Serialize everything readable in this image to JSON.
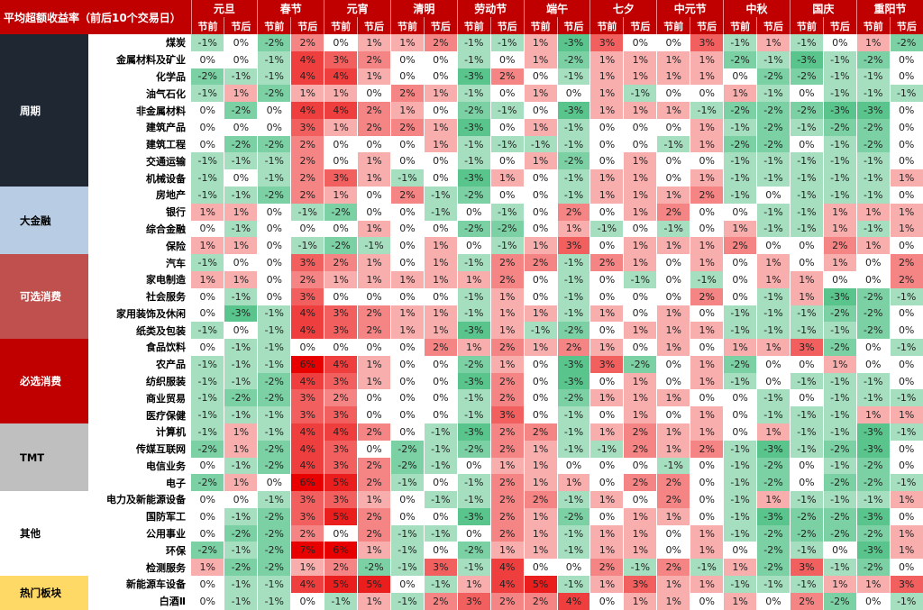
{
  "title": "平均超额收益率（前后10个交易日）",
  "holidays": [
    "元旦",
    "春节",
    "元宵",
    "清明",
    "劳动节",
    "端午",
    "七夕",
    "中元节",
    "中秋",
    "国庆",
    "重阳节"
  ],
  "sub_labels": [
    "节前",
    "节后"
  ],
  "groups": [
    {
      "name": "周期",
      "color": "#1f2733",
      "text_color": "#ffffff",
      "rows": 9
    },
    {
      "name": "大金融",
      "color": "#b8cce4",
      "text_color": "#000000",
      "rows": 4
    },
    {
      "name": "可选消费",
      "color": "#c0504d",
      "text_color": "#ffffff",
      "rows": 5
    },
    {
      "name": "必选消费",
      "color": "#c00000",
      "text_color": "#ffffff",
      "rows": 5
    },
    {
      "name": "TMT",
      "color": "#bfbfbf",
      "text_color": "#000000",
      "rows": 4
    },
    {
      "name": "其他",
      "color": "#ffffff",
      "text_color": "#000000",
      "rows": 5
    },
    {
      "name": "热门板块",
      "color": "#ffd966",
      "text_color": "#000000",
      "rows": 2
    }
  ],
  "chart_data": {
    "type": "heatmap",
    "title": "平均超额收益率（前后10个交易日）",
    "columns": [
      "元旦-节前",
      "元旦-节后",
      "春节-节前",
      "春节-节后",
      "元宵-节前",
      "元宵-节后",
      "清明-节前",
      "清明-节后",
      "劳动节-节前",
      "劳动节-节后",
      "端午-节前",
      "端午-节后",
      "七夕-节前",
      "七夕-节后",
      "中元节-节前",
      "中元节-节后",
      "中秋-节前",
      "中秋-节后",
      "国庆-节前",
      "国庆-节后",
      "重阳节-节前",
      "重阳节-节后"
    ],
    "unit": "%",
    "rows": [
      {
        "name": "煤炭",
        "values": [
          -1,
          0,
          -2,
          2,
          0,
          1,
          1,
          2,
          -1,
          -1,
          1,
          -3,
          3,
          0,
          0,
          3,
          -1,
          1,
          -1,
          0,
          1,
          -2
        ]
      },
      {
        "name": "金属材料及矿业",
        "values": [
          0,
          0,
          -1,
          4,
          3,
          2,
          0,
          0,
          -1,
          0,
          1,
          -2,
          1,
          1,
          1,
          1,
          -2,
          -1,
          -3,
          -1,
          -2,
          0
        ]
      },
      {
        "name": "化学品",
        "values": [
          -2,
          -1,
          -1,
          4,
          4,
          1,
          0,
          0,
          -3,
          2,
          0,
          -1,
          1,
          1,
          1,
          1,
          0,
          -2,
          -2,
          -1,
          -1,
          0
        ]
      },
      {
        "name": "油气石化",
        "values": [
          -1,
          1,
          -2,
          1,
          1,
          0,
          2,
          1,
          -1,
          0,
          1,
          0,
          1,
          -1,
          0,
          0,
          1,
          -1,
          0,
          -1,
          -1,
          -1
        ]
      },
      {
        "name": "非金属材料",
        "values": [
          0,
          -2,
          0,
          4,
          4,
          2,
          1,
          0,
          -2,
          -1,
          0,
          -3,
          1,
          1,
          1,
          -1,
          -2,
          -2,
          -2,
          -3,
          -3,
          0
        ]
      },
      {
        "name": "建筑产品",
        "values": [
          0,
          0,
          0,
          3,
          1,
          2,
          2,
          1,
          -3,
          0,
          1,
          -1,
          0,
          0,
          0,
          1,
          -1,
          -2,
          -1,
          -2,
          -2,
          0
        ]
      },
      {
        "name": "建筑工程",
        "values": [
          0,
          -2,
          -2,
          2,
          0,
          0,
          0,
          1,
          -1,
          -1,
          -1,
          -1,
          0,
          0,
          -1,
          1,
          -2,
          -2,
          0,
          -1,
          -2,
          0
        ]
      },
      {
        "name": "交通运输",
        "values": [
          -1,
          -1,
          -1,
          2,
          0,
          1,
          0,
          0,
          -1,
          0,
          1,
          -2,
          0,
          1,
          0,
          0,
          -1,
          -1,
          -1,
          -1,
          -1,
          0
        ]
      },
      {
        "name": "机械设备",
        "values": [
          -1,
          0,
          -1,
          2,
          3,
          1,
          -1,
          0,
          -3,
          1,
          0,
          -1,
          1,
          1,
          0,
          1,
          -1,
          -1,
          -1,
          -1,
          -1,
          1
        ]
      },
      {
        "name": "房地产",
        "values": [
          -1,
          -1,
          -2,
          2,
          1,
          0,
          2,
          -1,
          -2,
          0,
          0,
          -1,
          1,
          1,
          1,
          2,
          -1,
          0,
          -1,
          -1,
          -1,
          0
        ]
      },
      {
        "name": "银行",
        "values": [
          1,
          1,
          0,
          -1,
          -2,
          0,
          0,
          -1,
          0,
          -1,
          0,
          2,
          0,
          1,
          2,
          0,
          0,
          -1,
          -1,
          1,
          1,
          1
        ]
      },
      {
        "name": "综合金融",
        "values": [
          0,
          -1,
          0,
          0,
          0,
          1,
          0,
          0,
          -2,
          -2,
          0,
          1,
          -1,
          0,
          -1,
          0,
          1,
          -1,
          -1,
          1,
          -1,
          1
        ]
      },
      {
        "name": "保险",
        "values": [
          1,
          1,
          0,
          -1,
          -2,
          -1,
          0,
          1,
          0,
          -1,
          1,
          3,
          0,
          1,
          1,
          1,
          2,
          0,
          0,
          2,
          1,
          0
        ]
      },
      {
        "name": "汽车",
        "values": [
          -1,
          0,
          0,
          3,
          2,
          1,
          0,
          1,
          -1,
          2,
          2,
          -1,
          2,
          1,
          0,
          1,
          0,
          1,
          0,
          1,
          0,
          2
        ]
      },
      {
        "name": "家电制造",
        "values": [
          1,
          1,
          0,
          2,
          1,
          1,
          1,
          1,
          1,
          2,
          0,
          -1,
          0,
          -1,
          0,
          -1,
          0,
          1,
          1,
          0,
          0,
          2
        ]
      },
      {
        "name": "社会服务",
        "values": [
          0,
          -1,
          0,
          3,
          0,
          0,
          0,
          0,
          -1,
          1,
          0,
          -1,
          0,
          0,
          0,
          2,
          0,
          -1,
          1,
          -3,
          -2,
          -1
        ]
      },
      {
        "name": "家用装饰及休闲",
        "values": [
          0,
          -3,
          -1,
          4,
          3,
          2,
          1,
          1,
          -1,
          1,
          1,
          -1,
          1,
          0,
          1,
          0,
          -1,
          -1,
          -1,
          -2,
          -2,
          0
        ]
      },
      {
        "name": "纸类及包装",
        "values": [
          -1,
          0,
          -1,
          4,
          3,
          2,
          1,
          1,
          -3,
          1,
          -1,
          -2,
          0,
          1,
          1,
          1,
          -1,
          -1,
          -1,
          -1,
          -2,
          0
        ]
      },
      {
        "name": "食品饮料",
        "values": [
          0,
          -1,
          -1,
          0,
          0,
          0,
          0,
          2,
          1,
          2,
          1,
          2,
          1,
          0,
          1,
          0,
          1,
          1,
          3,
          -2,
          0,
          -1
        ]
      },
      {
        "name": "农产品",
        "values": [
          -1,
          -1,
          -1,
          6,
          4,
          1,
          0,
          0,
          -2,
          1,
          0,
          -3,
          3,
          -2,
          0,
          1,
          -2,
          0,
          0,
          1,
          0,
          0
        ]
      },
      {
        "name": "纺织服装",
        "values": [
          -1,
          -1,
          -2,
          4,
          3,
          1,
          0,
          0,
          -3,
          2,
          0,
          -3,
          0,
          1,
          0,
          1,
          -1,
          0,
          -1,
          -1,
          -1,
          0
        ]
      },
      {
        "name": "商业贸易",
        "values": [
          -1,
          -2,
          -2,
          3,
          2,
          0,
          0,
          0,
          -1,
          2,
          0,
          -2,
          1,
          1,
          1,
          0,
          0,
          -1,
          0,
          -1,
          -1,
          -1
        ]
      },
      {
        "name": "医疗保健",
        "values": [
          -1,
          -1,
          -1,
          3,
          3,
          0,
          0,
          0,
          -1,
          3,
          0,
          -1,
          0,
          1,
          0,
          1,
          0,
          -1,
          -1,
          -1,
          1,
          1
        ]
      },
      {
        "name": "计算机",
        "values": [
          -1,
          1,
          -1,
          4,
          4,
          2,
          0,
          -1,
          -3,
          2,
          2,
          -1,
          1,
          2,
          1,
          1,
          0,
          1,
          -1,
          -1,
          -3,
          -1
        ]
      },
      {
        "name": "传媒互联网",
        "values": [
          -2,
          1,
          -2,
          4,
          3,
          0,
          -2,
          -1,
          -2,
          2,
          1,
          -1,
          -1,
          2,
          1,
          2,
          -1,
          -3,
          -1,
          -2,
          -3,
          0
        ]
      },
      {
        "name": "电信业务",
        "values": [
          0,
          -1,
          -2,
          4,
          3,
          2,
          -2,
          -1,
          0,
          1,
          1,
          0,
          0,
          0,
          -1,
          0,
          -1,
          -2,
          0,
          -1,
          -2,
          0
        ]
      },
      {
        "name": "电子",
        "values": [
          -2,
          1,
          0,
          6,
          5,
          2,
          -1,
          0,
          -1,
          2,
          1,
          1,
          0,
          2,
          2,
          0,
          -1,
          -2,
          0,
          -2,
          -2,
          -1
        ]
      },
      {
        "name": "电力及新能源设备",
        "values": [
          0,
          0,
          -1,
          3,
          3,
          1,
          0,
          -1,
          -1,
          2,
          2,
          -1,
          1,
          0,
          2,
          0,
          -1,
          1,
          -1,
          -1,
          -1,
          1
        ]
      },
      {
        "name": "国防军工",
        "values": [
          0,
          -1,
          -2,
          3,
          5,
          2,
          0,
          0,
          -3,
          2,
          1,
          -2,
          0,
          1,
          1,
          0,
          -1,
          -3,
          -2,
          -2,
          -3,
          0
        ]
      },
      {
        "name": "公用事业",
        "values": [
          0,
          -2,
          -2,
          2,
          0,
          2,
          -1,
          -1,
          0,
          2,
          1,
          -1,
          1,
          1,
          0,
          1,
          -1,
          -2,
          -2,
          -2,
          -2,
          1
        ]
      },
      {
        "name": "环保",
        "values": [
          -2,
          -1,
          -2,
          7,
          6,
          1,
          -1,
          0,
          -2,
          1,
          1,
          -1,
          1,
          1,
          0,
          1,
          0,
          -2,
          -1,
          0,
          -3,
          1
        ]
      },
      {
        "name": "检测服务",
        "values": [
          1,
          -2,
          -2,
          1,
          2,
          -2,
          -1,
          3,
          -1,
          4,
          0,
          0,
          2,
          -1,
          2,
          -1,
          1,
          -2,
          3,
          -1,
          -2,
          0
        ]
      },
      {
        "name": "新能源车设备",
        "values": [
          0,
          -1,
          -1,
          4,
          5,
          5,
          0,
          -1,
          1,
          4,
          5,
          -1,
          1,
          3,
          1,
          1,
          -1,
          -1,
          -1,
          1,
          1,
          3
        ]
      },
      {
        "name": "白酒Ⅱ",
        "values": [
          0,
          -1,
          -1,
          0,
          -1,
          1,
          -1,
          2,
          3,
          2,
          2,
          4,
          0,
          1,
          1,
          0,
          1,
          0,
          2,
          -2,
          0,
          -1
        ]
      }
    ]
  }
}
